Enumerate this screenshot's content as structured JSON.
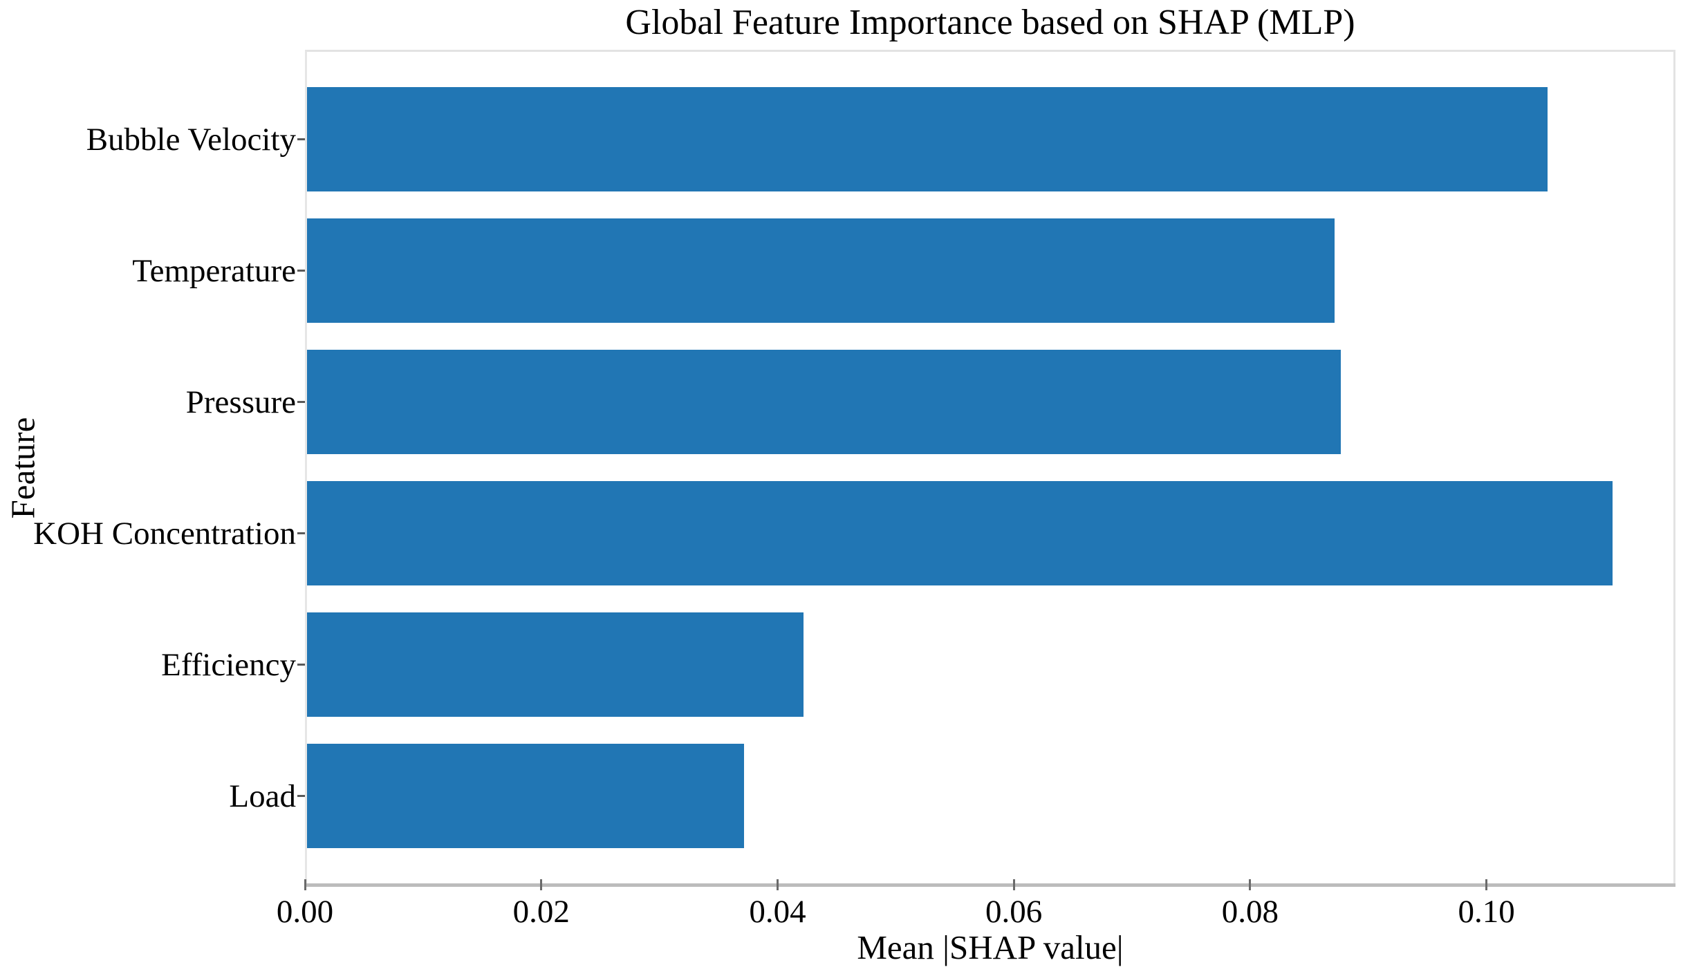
{
  "title": "Global Feature Importance based on SHAP (MLP)",
  "colors": {
    "bar": "#2176b4",
    "spine": "#e3e3e3",
    "axis_line": "#bcbcbc",
    "tick_mark": "#5a5a5a",
    "text": "#000000",
    "background": "#ffffff"
  },
  "chart_data": {
    "type": "bar",
    "orientation": "horizontal",
    "title": "Global Feature Importance based on SHAP (MLP)",
    "xlabel": "Mean |SHAP value|",
    "ylabel": "Feature",
    "categories": [
      "Bubble Velocity",
      "Temperature",
      "Pressure",
      "KOH Concentration",
      "Efficiency",
      "Load"
    ],
    "values": [
      0.105,
      0.087,
      0.0875,
      0.1105,
      0.042,
      0.037
    ],
    "xlim": [
      0,
      0.116
    ],
    "xticks": [
      0.0,
      0.02,
      0.04,
      0.06,
      0.08,
      0.1
    ],
    "xtick_labels": [
      "0.00",
      "0.02",
      "0.04",
      "0.06",
      "0.08",
      "0.10"
    ],
    "grid": false,
    "legend": null,
    "bar_color": "#2176b4"
  }
}
